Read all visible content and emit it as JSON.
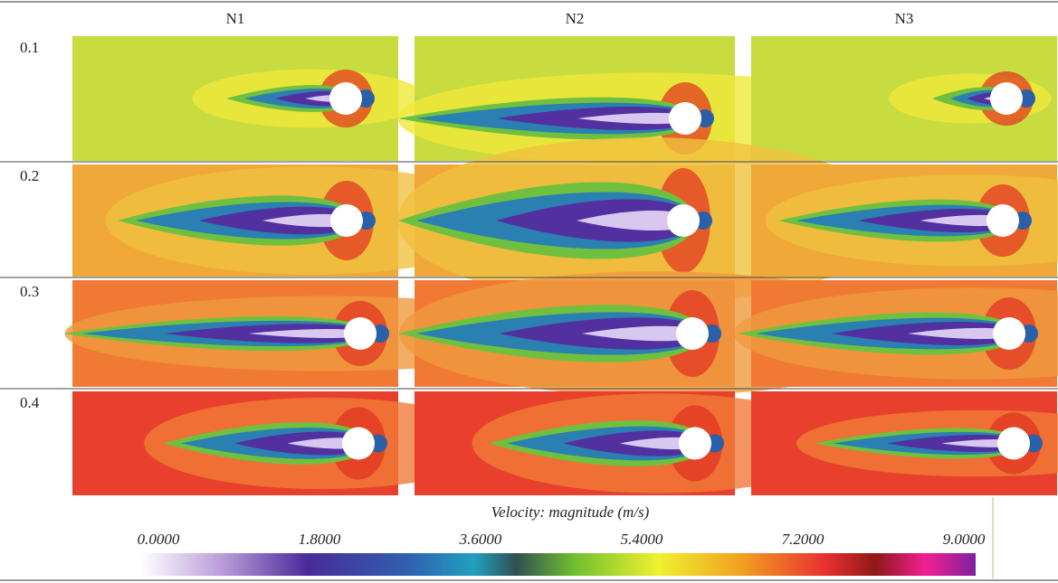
{
  "headers": {
    "columns": [
      "N1",
      "N2",
      "N3"
    ],
    "rows": [
      "0.1",
      "0.2",
      "0.3",
      "0.4"
    ]
  },
  "colorbar": {
    "title": "Velocity: magnitude (m/s)",
    "ticks": [
      {
        "value": 0,
        "label": "0.0000"
      },
      {
        "value": 1.8,
        "label": "1.8000"
      },
      {
        "value": 3.6,
        "label": "3.6000"
      },
      {
        "value": 5.4,
        "label": "5.4000"
      },
      {
        "value": 7.2,
        "label": "7.2000"
      },
      {
        "value": 9,
        "label": "9.0000"
      }
    ]
  }
}
